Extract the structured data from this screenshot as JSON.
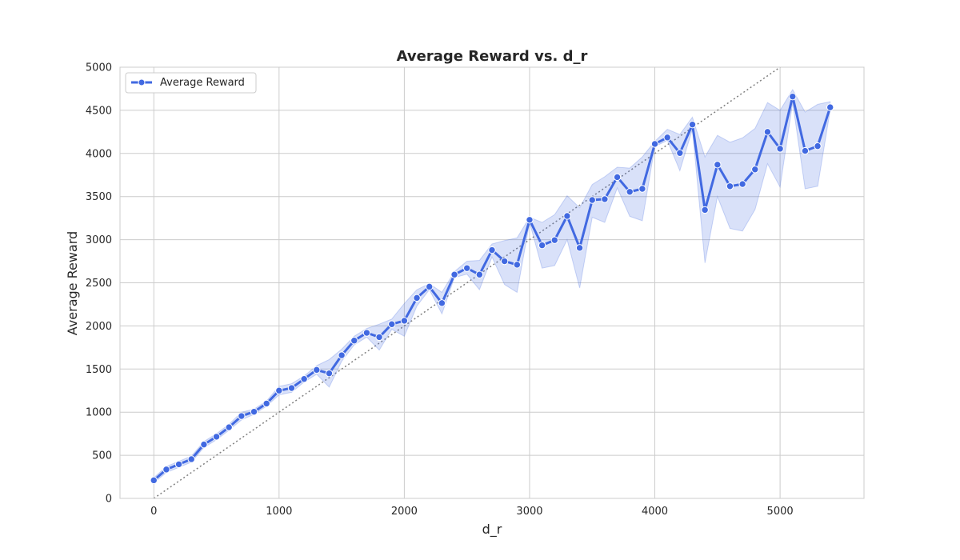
{
  "chart_data": {
    "type": "line",
    "title": "Average Reward vs. d_r",
    "xlabel": "d_r",
    "ylabel": "Average Reward",
    "xlim": [
      -270,
      5670
    ],
    "ylim": [
      0,
      5000
    ],
    "xticks": [
      0,
      1000,
      2000,
      3000,
      4000,
      5000
    ],
    "yticks": [
      0,
      500,
      1000,
      1500,
      2000,
      2500,
      3000,
      3500,
      4000,
      4500,
      5000
    ],
    "grid": true,
    "legend_position": "top-left",
    "reference_line": {
      "style": "dotted",
      "color": "#808080",
      "from": [
        0,
        0
      ],
      "to": [
        5000,
        5000
      ]
    },
    "series": [
      {
        "name": "Average Reward",
        "color": "#4169e1",
        "band_color": "#4169e1",
        "x": [
          0,
          100,
          200,
          300,
          400,
          500,
          600,
          700,
          800,
          900,
          1000,
          1100,
          1200,
          1300,
          1400,
          1500,
          1600,
          1700,
          1800,
          1900,
          2000,
          2100,
          2200,
          2300,
          2400,
          2500,
          2600,
          2700,
          2800,
          2900,
          3000,
          3100,
          3200,
          3300,
          3400,
          3500,
          3600,
          3700,
          3800,
          3900,
          4000,
          4100,
          4200,
          4300,
          4400,
          4500,
          4600,
          4700,
          4800,
          4900,
          5000,
          5100,
          5200,
          5300,
          5400
        ],
        "values": [
          210,
          335,
          395,
          455,
          625,
          715,
          825,
          955,
          1005,
          1100,
          1250,
          1280,
          1385,
          1490,
          1450,
          1660,
          1830,
          1920,
          1870,
          2020,
          2060,
          2325,
          2455,
          2265,
          2595,
          2670,
          2595,
          2880,
          2750,
          2710,
          3230,
          2935,
          2995,
          3275,
          2905,
          3460,
          3470,
          3725,
          3555,
          3590,
          4110,
          4185,
          4005,
          4335,
          3345,
          3870,
          3620,
          3645,
          3815,
          4250,
          4055,
          4660,
          4030,
          4085,
          4535
        ],
        "lower": [
          180,
          300,
          360,
          420,
          590,
          680,
          790,
          910,
          975,
          1070,
          1200,
          1230,
          1350,
          1440,
          1290,
          1590,
          1780,
          1870,
          1720,
          1960,
          1880,
          2230,
          2420,
          2140,
          2560,
          2600,
          2420,
          2800,
          2480,
          2390,
          3200,
          2670,
          2700,
          3000,
          2440,
          3260,
          3200,
          3600,
          3270,
          3220,
          4080,
          4150,
          3800,
          4280,
          2730,
          3500,
          3130,
          3100,
          3350,
          3880,
          3610,
          4590,
          3590,
          3620,
          4500
        ],
        "upper": [
          240,
          370,
          430,
          490,
          660,
          750,
          860,
          1000,
          1035,
          1130,
          1300,
          1330,
          1420,
          1540,
          1610,
          1730,
          1880,
          1970,
          2020,
          2080,
          2260,
          2420,
          2490,
          2390,
          2630,
          2750,
          2760,
          2950,
          2990,
          3020,
          3260,
          3200,
          3290,
          3510,
          3370,
          3640,
          3730,
          3840,
          3830,
          3960,
          4140,
          4280,
          4220,
          4420,
          3960,
          4210,
          4130,
          4180,
          4290,
          4590,
          4500,
          4740,
          4480,
          4570,
          4600
        ]
      }
    ]
  }
}
